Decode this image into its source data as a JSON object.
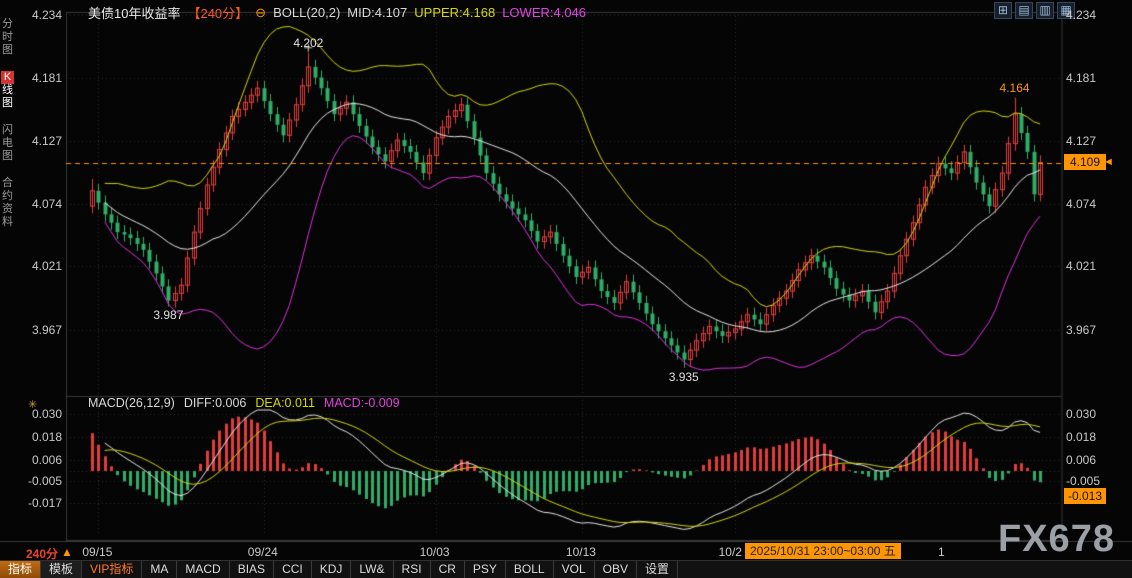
{
  "header": {
    "title": "美债10年收益率",
    "period_tag": "【240分】",
    "collapse_icon": "⊖",
    "boll_label": "BOLL(20,2)",
    "mid_label": "MID:4.107",
    "upper_label": "UPPER:4.168",
    "lower_label": "LOWER:4.046",
    "window_icons": [
      {
        "name": "grid-quad-icon",
        "glyph": "⊞"
      },
      {
        "name": "panel-rows-icon",
        "glyph": "▤"
      },
      {
        "name": "panel-cols-icon",
        "glyph": "▥"
      },
      {
        "name": "panel-grid-icon",
        "glyph": "▦"
      }
    ]
  },
  "sidebar": {
    "tabs": [
      {
        "label": "分时图",
        "active": false
      },
      {
        "label": "K线图",
        "active": true
      },
      {
        "label": "闪电图",
        "active": false
      },
      {
        "label": "合约资料",
        "active": false
      }
    ]
  },
  "main_chart": {
    "current_price": "4.109"
  },
  "macd_panel": {
    "label": "MACD(26,12,9)",
    "diff_label": "DIFF:0.006",
    "dea_label": "DEA:0.011",
    "macd_label": "MACD:-0.009",
    "current_badge": "-0.013",
    "panel_icon": "✳"
  },
  "x_axis": {
    "period": "240分",
    "arrow": "▲",
    "highlight": "2025/10/31 23:00~03:00 五",
    "after_highlight": "1"
  },
  "toolbar": {
    "items": [
      {
        "label": "指标",
        "type": "tab-active"
      },
      {
        "label": "模板",
        "type": "tab"
      },
      {
        "label": "VIP指标",
        "type": "vip"
      },
      {
        "label": "MA",
        "type": "btn"
      },
      {
        "label": "MACD",
        "type": "btn"
      },
      {
        "label": "BIAS",
        "type": "btn"
      },
      {
        "label": "CCI",
        "type": "btn"
      },
      {
        "label": "KDJ",
        "type": "btn"
      },
      {
        "label": "LW&",
        "type": "btn"
      },
      {
        "label": "RSI",
        "type": "btn"
      },
      {
        "label": "CR",
        "type": "btn"
      },
      {
        "label": "PSY",
        "type": "btn"
      },
      {
        "label": "BOLL",
        "type": "btn"
      },
      {
        "label": "VOL",
        "type": "btn"
      },
      {
        "label": "OBV",
        "type": "btn"
      },
      {
        "label": "设置",
        "type": "btn"
      }
    ]
  },
  "watermark": "FX678",
  "colors": {
    "accent": "#ff9500",
    "up": "#e23d3d",
    "down": "#2fae68",
    "boll_mid": "#e6e6e6",
    "boll_upper": "#d6d60a",
    "boll_lower": "#dd33dd",
    "diff_line": "#e6e6e6",
    "dea_line": "#d6d60a",
    "grid": "#2e2e2e",
    "frame": "#383838"
  },
  "chart_data": {
    "type": "candlestick",
    "title": "美债10年收益率 240分 K线 + BOLL(20,2) + MACD(26,12,9)",
    "y_ticks_main": [
      4.234,
      4.181,
      4.127,
      4.074,
      4.021,
      3.967
    ],
    "y_ticks_macd": [
      0.03,
      0.018,
      0.006,
      -0.005,
      -0.017
    ],
    "x_labels": [
      {
        "index": 1,
        "label": "09/15"
      },
      {
        "index": 27,
        "label": "09/24"
      },
      {
        "index": 54,
        "label": "10/03"
      },
      {
        "index": 77,
        "label": "10/13"
      },
      {
        "index": 101,
        "label": "10/2"
      }
    ],
    "current_price": 4.109,
    "boll": {
      "period": 20,
      "mult": 2,
      "mid": 4.107,
      "upper": 4.168,
      "lower": 4.046
    },
    "macd": {
      "fast": 12,
      "slow": 26,
      "signal": 9,
      "diff": 0.006,
      "dea": 0.011,
      "macd": -0.009,
      "hist_last": -0.013
    },
    "annotations": [
      {
        "index": 34,
        "value": 4.202,
        "position": "above",
        "color": "#e0e0e0"
      },
      {
        "index": 12,
        "value": 3.987,
        "position": "below",
        "color": "#e0e0e0"
      },
      {
        "index": 93,
        "value": 3.935,
        "position": "below",
        "color": "#e0e0e0"
      },
      {
        "index": 145,
        "value": 4.164,
        "position": "above",
        "color": "#ff9500"
      }
    ],
    "candles": [
      [
        4.072,
        4.095,
        4.066,
        4.085
      ],
      [
        4.085,
        4.091,
        4.069,
        4.075
      ],
      [
        4.075,
        4.081,
        4.059,
        4.065
      ],
      [
        4.065,
        4.071,
        4.052,
        4.058
      ],
      [
        4.058,
        4.064,
        4.044,
        4.05
      ],
      [
        4.05,
        4.056,
        4.042,
        4.048
      ],
      [
        4.048,
        4.054,
        4.039,
        4.045
      ],
      [
        4.045,
        4.051,
        4.034,
        4.04
      ],
      [
        4.04,
        4.046,
        4.029,
        4.035
      ],
      [
        4.035,
        4.041,
        4.019,
        4.025
      ],
      [
        4.025,
        4.031,
        4.009,
        4.015
      ],
      [
        4.015,
        4.021,
        3.998,
        4.004
      ],
      [
        4.004,
        4.01,
        3.987,
        3.992
      ],
      [
        3.992,
        4.004,
        3.986,
        3.998
      ],
      [
        3.998,
        4.011,
        3.992,
        4.005
      ],
      [
        4.005,
        4.034,
        3.999,
        4.028
      ],
      [
        4.028,
        4.056,
        4.022,
        4.05
      ],
      [
        4.05,
        4.076,
        4.044,
        4.07
      ],
      [
        4.07,
        4.096,
        4.064,
        4.09
      ],
      [
        4.09,
        4.111,
        4.084,
        4.105
      ],
      [
        4.105,
        4.126,
        4.099,
        4.12
      ],
      [
        4.12,
        4.14,
        4.114,
        4.134
      ],
      [
        4.134,
        4.154,
        4.128,
        4.148
      ],
      [
        4.148,
        4.16,
        4.142,
        4.154
      ],
      [
        4.154,
        4.166,
        4.148,
        4.16
      ],
      [
        4.16,
        4.172,
        4.154,
        4.166
      ],
      [
        4.166,
        4.178,
        4.16,
        4.172
      ],
      [
        4.172,
        4.178,
        4.155,
        4.161
      ],
      [
        4.161,
        4.167,
        4.144,
        4.15
      ],
      [
        4.15,
        4.156,
        4.135,
        4.141
      ],
      [
        4.141,
        4.147,
        4.126,
        4.132
      ],
      [
        4.132,
        4.151,
        4.126,
        4.145
      ],
      [
        4.145,
        4.164,
        4.139,
        4.158
      ],
      [
        4.158,
        4.18,
        4.152,
        4.174
      ],
      [
        4.174,
        4.202,
        4.168,
        4.19
      ],
      [
        4.19,
        4.196,
        4.175,
        4.181
      ],
      [
        4.181,
        4.187,
        4.166,
        4.172
      ],
      [
        4.172,
        4.178,
        4.155,
        4.161
      ],
      [
        4.161,
        4.167,
        4.144,
        4.15
      ],
      [
        4.15,
        4.161,
        4.144,
        4.155
      ],
      [
        4.155,
        4.166,
        4.149,
        4.16
      ],
      [
        4.16,
        4.166,
        4.144,
        4.15
      ],
      [
        4.15,
        4.156,
        4.134,
        4.14
      ],
      [
        4.14,
        4.146,
        4.125,
        4.131
      ],
      [
        4.131,
        4.137,
        4.116,
        4.122
      ],
      [
        4.122,
        4.128,
        4.11,
        4.116
      ],
      [
        4.116,
        4.122,
        4.104,
        4.11
      ],
      [
        4.11,
        4.125,
        4.104,
        4.119
      ],
      [
        4.119,
        4.134,
        4.113,
        4.128
      ],
      [
        4.128,
        4.134,
        4.117,
        4.123
      ],
      [
        4.123,
        4.129,
        4.112,
        4.118
      ],
      [
        4.118,
        4.124,
        4.103,
        4.109
      ],
      [
        4.109,
        4.115,
        4.094,
        4.1
      ],
      [
        4.1,
        4.121,
        4.094,
        4.115
      ],
      [
        4.115,
        4.136,
        4.109,
        4.13
      ],
      [
        4.13,
        4.145,
        4.124,
        4.139
      ],
      [
        4.139,
        4.154,
        4.133,
        4.148
      ],
      [
        4.148,
        4.159,
        4.142,
        4.153
      ],
      [
        4.153,
        4.164,
        4.147,
        4.158
      ],
      [
        4.158,
        4.164,
        4.138,
        4.144
      ],
      [
        4.144,
        4.15,
        4.124,
        4.13
      ],
      [
        4.13,
        4.136,
        4.109,
        4.115
      ],
      [
        4.115,
        4.121,
        4.094,
        4.1
      ],
      [
        4.1,
        4.106,
        4.085,
        4.091
      ],
      [
        4.091,
        4.097,
        4.076,
        4.082
      ],
      [
        4.082,
        4.088,
        4.07,
        4.076
      ],
      [
        4.076,
        4.082,
        4.064,
        4.07
      ],
      [
        4.07,
        4.076,
        4.059,
        4.065
      ],
      [
        4.065,
        4.071,
        4.054,
        4.06
      ],
      [
        4.06,
        4.066,
        4.045,
        4.051
      ],
      [
        4.051,
        4.057,
        4.036,
        4.042
      ],
      [
        4.042,
        4.052,
        4.036,
        4.046
      ],
      [
        4.046,
        4.056,
        4.04,
        4.05
      ],
      [
        4.05,
        4.056,
        4.034,
        4.04
      ],
      [
        4.04,
        4.046,
        4.024,
        4.03
      ],
      [
        4.03,
        4.036,
        4.015,
        4.021
      ],
      [
        4.021,
        4.027,
        4.006,
        4.012
      ],
      [
        4.012,
        4.022,
        4.006,
        4.016
      ],
      [
        4.016,
        4.026,
        4.01,
        4.02
      ],
      [
        4.02,
        4.026,
        4.004,
        4.01
      ],
      [
        4.01,
        4.016,
        3.994,
        4.0
      ],
      [
        4.0,
        4.006,
        3.989,
        3.995
      ],
      [
        3.995,
        4.001,
        3.984,
        3.99
      ],
      [
        3.99,
        4.005,
        3.984,
        3.999
      ],
      [
        3.999,
        4.014,
        3.993,
        4.008
      ],
      [
        4.008,
        4.014,
        3.993,
        3.999
      ],
      [
        3.999,
        4.005,
        3.984,
        3.99
      ],
      [
        3.99,
        3.996,
        3.975,
        3.981
      ],
      [
        3.981,
        3.987,
        3.966,
        3.972
      ],
      [
        3.972,
        3.978,
        3.96,
        3.966
      ],
      [
        3.966,
        3.972,
        3.954,
        3.96
      ],
      [
        3.96,
        3.966,
        3.948,
        3.954
      ],
      [
        3.954,
        3.96,
        3.942,
        3.948
      ],
      [
        3.948,
        3.954,
        3.935,
        3.942
      ],
      [
        3.942,
        3.956,
        3.936,
        3.95
      ],
      [
        3.95,
        3.964,
        3.944,
        3.958
      ],
      [
        3.958,
        3.97,
        3.952,
        3.964
      ],
      [
        3.964,
        3.976,
        3.958,
        3.97
      ],
      [
        3.97,
        3.976,
        3.96,
        3.966
      ],
      [
        3.966,
        3.972,
        3.956,
        3.962
      ],
      [
        3.962,
        3.971,
        3.956,
        3.965
      ],
      [
        3.965,
        3.974,
        3.959,
        3.968
      ],
      [
        3.968,
        3.98,
        3.962,
        3.974
      ],
      [
        3.974,
        3.986,
        3.968,
        3.98
      ],
      [
        3.98,
        3.986,
        3.97,
        3.976
      ],
      [
        3.976,
        3.982,
        3.966,
        3.972
      ],
      [
        3.972,
        3.986,
        3.966,
        3.98
      ],
      [
        3.98,
        3.994,
        3.974,
        3.988
      ],
      [
        3.988,
        4.0,
        3.982,
        3.994
      ],
      [
        3.994,
        4.006,
        3.988,
        4.0
      ],
      [
        4.0,
        4.015,
        3.994,
        4.009
      ],
      [
        4.009,
        4.024,
        4.003,
        4.018
      ],
      [
        4.018,
        4.03,
        4.012,
        4.024
      ],
      [
        4.024,
        4.036,
        4.018,
        4.03
      ],
      [
        4.03,
        4.036,
        4.019,
        4.025
      ],
      [
        4.025,
        4.031,
        4.014,
        4.02
      ],
      [
        4.02,
        4.026,
        4.005,
        4.011
      ],
      [
        4.011,
        4.017,
        3.996,
        4.002
      ],
      [
        4.002,
        4.008,
        3.991,
        3.997
      ],
      [
        3.997,
        4.003,
        3.986,
        3.992
      ],
      [
        3.992,
        4.002,
        3.986,
        3.996
      ],
      [
        3.996,
        4.006,
        3.99,
        4.0
      ],
      [
        4.0,
        4.006,
        3.985,
        3.991
      ],
      [
        3.991,
        3.997,
        3.976,
        3.982
      ],
      [
        3.982,
        3.997,
        3.976,
        3.991
      ],
      [
        3.991,
        4.006,
        3.985,
        4.0
      ],
      [
        4.0,
        4.021,
        3.994,
        4.015
      ],
      [
        4.015,
        4.036,
        4.009,
        4.03
      ],
      [
        4.03,
        4.05,
        4.024,
        4.044
      ],
      [
        4.044,
        4.064,
        4.038,
        4.058
      ],
      [
        4.058,
        4.079,
        4.052,
        4.073
      ],
      [
        4.073,
        4.094,
        4.067,
        4.088
      ],
      [
        4.088,
        4.104,
        4.082,
        4.098
      ],
      [
        4.098,
        4.114,
        4.092,
        4.108
      ],
      [
        4.108,
        4.114,
        4.098,
        4.104
      ],
      [
        4.104,
        4.11,
        4.094,
        4.1
      ],
      [
        4.1,
        4.115,
        4.094,
        4.109
      ],
      [
        4.109,
        4.124,
        4.103,
        4.118
      ],
      [
        4.118,
        4.124,
        4.099,
        4.105
      ],
      [
        4.105,
        4.111,
        4.086,
        4.092
      ],
      [
        4.092,
        4.098,
        4.076,
        4.082
      ],
      [
        4.082,
        4.088,
        4.066,
        4.072
      ],
      [
        4.072,
        4.092,
        4.066,
        4.086
      ],
      [
        4.086,
        4.106,
        4.08,
        4.1
      ],
      [
        4.1,
        4.131,
        4.094,
        4.125
      ],
      [
        4.125,
        4.164,
        4.119,
        4.15
      ],
      [
        4.15,
        4.156,
        4.128,
        4.134
      ],
      [
        4.134,
        4.14,
        4.112,
        4.118
      ],
      [
        4.118,
        4.124,
        4.076,
        4.082
      ],
      [
        4.082,
        4.115,
        4.076,
        4.109
      ]
    ]
  }
}
